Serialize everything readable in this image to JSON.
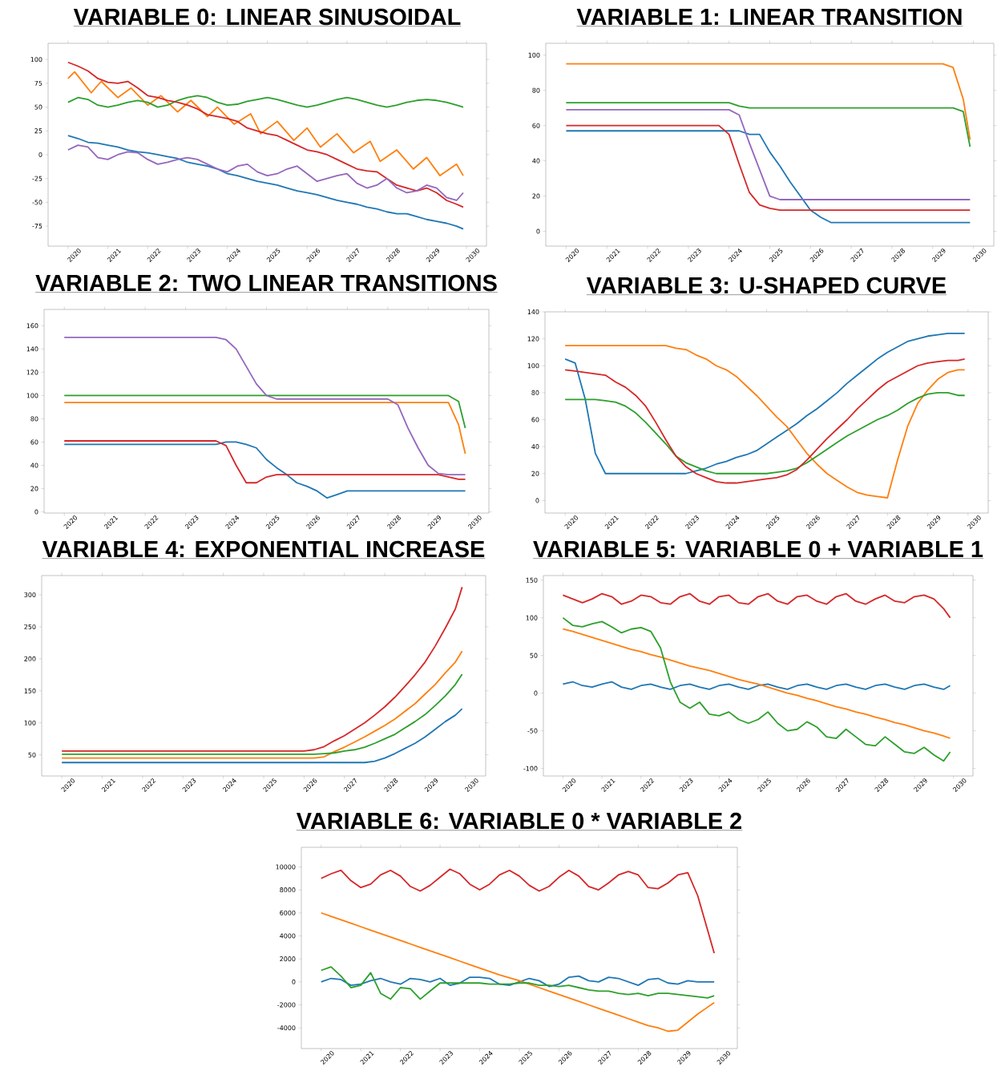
{
  "chart_data": [
    {
      "type": "line",
      "title": "VARIABLE 0: LINEAR SINUSOIDAL",
      "x": [
        "2020-01",
        "2020-04",
        "2020-07",
        "2020-10",
        "2021-01",
        "2021-04",
        "2021-07",
        "2021-10",
        "2022-01",
        "2022-04",
        "2022-07",
        "2022-10",
        "2023-01",
        "2023-04",
        "2023-07",
        "2023-10",
        "2024-01",
        "2024-04",
        "2024-07",
        "2024-10",
        "2025-01",
        "2025-04",
        "2025-07",
        "2025-10",
        "2026-01",
        "2026-04",
        "2026-07",
        "2026-10",
        "2027-01",
        "2027-04",
        "2027-07",
        "2027-10",
        "2028-01",
        "2028-04",
        "2028-07",
        "2028-10",
        "2029-01",
        "2029-04",
        "2029-07",
        "2029-10",
        "2029-12"
      ],
      "xlim": [
        "2019-07",
        "2030-07"
      ],
      "xticks": [
        "2020",
        "2021",
        "2022",
        "2023",
        "2024",
        "2025",
        "2026",
        "2027",
        "2028",
        "2029",
        "2030"
      ],
      "ylim": [
        -96,
        117
      ],
      "yticks": [
        -75,
        -50,
        -25,
        0,
        25,
        50,
        75,
        100
      ],
      "series": [
        {
          "color": "#1f77b4",
          "values": [
            20,
            17,
            13,
            12,
            10,
            8,
            5,
            3,
            2,
            0,
            -2,
            -4,
            -8,
            -10,
            -12,
            -15,
            -20,
            -22,
            -25,
            -28,
            -30,
            -32,
            -35,
            -38,
            -40,
            -42,
            -45,
            -48,
            -50,
            -52,
            -55,
            -57,
            -60,
            -62,
            -62,
            -65,
            -68,
            -70,
            -72,
            -75,
            -78
          ]
        },
        {
          "color": "#ff7f0e",
          "x": [
            "2020-01",
            "2020-03",
            "2020-08",
            "2020-11",
            "2021-04",
            "2021-08",
            "2022-01",
            "2022-05",
            "2022-10",
            "2023-02",
            "2023-07",
            "2023-10",
            "2024-03",
            "2024-08",
            "2024-11",
            "2025-04",
            "2025-09",
            "2026-01",
            "2026-05",
            "2026-10",
            "2027-03",
            "2027-08",
            "2027-11",
            "2028-04",
            "2028-09",
            "2029-01",
            "2029-05",
            "2029-10",
            "2029-12"
          ],
          "values": [
            80,
            87,
            65,
            77,
            60,
            70,
            52,
            62,
            45,
            57,
            40,
            50,
            32,
            43,
            22,
            35,
            15,
            28,
            8,
            22,
            2,
            14,
            -7,
            5,
            -15,
            -3,
            -22,
            -10,
            -22
          ]
        },
        {
          "color": "#2ca02c",
          "values": [
            55,
            60,
            58,
            52,
            50,
            52,
            55,
            57,
            55,
            50,
            52,
            57,
            60,
            62,
            60,
            55,
            52,
            53,
            56,
            58,
            60,
            58,
            55,
            52,
            50,
            52,
            55,
            58,
            60,
            58,
            55,
            52,
            50,
            52,
            55,
            57,
            58,
            57,
            55,
            52,
            50
          ]
        },
        {
          "color": "#d62728",
          "values": [
            97,
            93,
            88,
            80,
            76,
            75,
            77,
            70,
            62,
            60,
            57,
            55,
            52,
            48,
            42,
            40,
            38,
            35,
            28,
            25,
            22,
            20,
            15,
            10,
            5,
            3,
            0,
            -5,
            -10,
            -15,
            -17,
            -18,
            -25,
            -32,
            -35,
            -38,
            -35,
            -40,
            -48,
            -52,
            -55
          ]
        },
        {
          "color": "#9467bd",
          "values": [
            5,
            10,
            8,
            -3,
            -5,
            0,
            3,
            2,
            -5,
            -10,
            -8,
            -5,
            -3,
            -5,
            -10,
            -15,
            -18,
            -12,
            -10,
            -18,
            -22,
            -20,
            -15,
            -12,
            -20,
            -28,
            -25,
            -22,
            -20,
            -30,
            -35,
            -32,
            -25,
            -35,
            -40,
            -38,
            -32,
            -35,
            -45,
            -48,
            -40
          ]
        }
      ]
    },
    {
      "type": "line",
      "title": "VARIABLE 1: LINEAR TRANSITION",
      "x": [
        "2020-01",
        "2020-04",
        "2020-07",
        "2020-10",
        "2021-01",
        "2021-04",
        "2021-07",
        "2021-10",
        "2022-01",
        "2022-04",
        "2022-07",
        "2022-10",
        "2023-01",
        "2023-04",
        "2023-07",
        "2023-10",
        "2024-01",
        "2024-04",
        "2024-07",
        "2024-10",
        "2025-01",
        "2025-04",
        "2025-07",
        "2025-10",
        "2026-01",
        "2026-04",
        "2026-07",
        "2026-10",
        "2027-01",
        "2027-04",
        "2027-07",
        "2027-10",
        "2028-01",
        "2028-04",
        "2028-07",
        "2028-10",
        "2029-01",
        "2029-04",
        "2029-07",
        "2029-10",
        "2029-12"
      ],
      "xlim": [
        "2019-07",
        "2030-07"
      ],
      "xticks": [
        "2020",
        "2021",
        "2022",
        "2023",
        "2024",
        "2025",
        "2026",
        "2027",
        "2028",
        "2029",
        "2030"
      ],
      "ylim": [
        -8.4,
        106.7
      ],
      "yticks": [
        0,
        20,
        40,
        60,
        80,
        100
      ],
      "series": [
        {
          "color": "#1f77b4",
          "values": [
            57,
            57,
            57,
            57,
            57,
            57,
            57,
            57,
            57,
            57,
            57,
            57,
            57,
            57,
            57,
            57,
            57,
            57,
            55,
            55,
            45,
            37,
            28,
            20,
            12,
            8,
            5,
            5,
            5,
            5,
            5,
            5,
            5,
            5,
            5,
            5,
            5,
            5,
            5,
            5,
            5
          ]
        },
        {
          "color": "#ff7f0e",
          "values": [
            95,
            95,
            95,
            95,
            95,
            95,
            95,
            95,
            95,
            95,
            95,
            95,
            95,
            95,
            95,
            95,
            95,
            95,
            95,
            95,
            95,
            95,
            95,
            95,
            95,
            95,
            95,
            95,
            95,
            95,
            95,
            95,
            95,
            95,
            95,
            95,
            95,
            95,
            93,
            75,
            52
          ]
        },
        {
          "color": "#2ca02c",
          "values": [
            73,
            73,
            73,
            73,
            73,
            73,
            73,
            73,
            73,
            73,
            73,
            73,
            73,
            73,
            73,
            73,
            73,
            71,
            70,
            70,
            70,
            70,
            70,
            70,
            70,
            70,
            70,
            70,
            70,
            70,
            70,
            70,
            70,
            70,
            70,
            70,
            70,
            70,
            70,
            68,
            48
          ]
        },
        {
          "color": "#d62728",
          "values": [
            60,
            60,
            60,
            60,
            60,
            60,
            60,
            60,
            60,
            60,
            60,
            60,
            60,
            60,
            60,
            60,
            55,
            38,
            22,
            15,
            13,
            12,
            12,
            12,
            12,
            12,
            12,
            12,
            12,
            12,
            12,
            12,
            12,
            12,
            12,
            12,
            12,
            12,
            12,
            12,
            12
          ]
        },
        {
          "color": "#9467bd",
          "values": [
            69,
            69,
            69,
            69,
            69,
            69,
            69,
            69,
            69,
            69,
            69,
            69,
            69,
            69,
            69,
            69,
            69,
            66,
            50,
            35,
            20,
            18,
            18,
            18,
            18,
            18,
            18,
            18,
            18,
            18,
            18,
            18,
            18,
            18,
            18,
            18,
            18,
            18,
            18,
            18,
            18
          ]
        }
      ]
    },
    {
      "type": "line",
      "title": "VARIABLE 2: TWO LINEAR TRANSITIONS",
      "x": [
        "2020-01",
        "2020-04",
        "2020-07",
        "2020-10",
        "2021-01",
        "2021-04",
        "2021-07",
        "2021-10",
        "2022-01",
        "2022-04",
        "2022-07",
        "2022-10",
        "2023-01",
        "2023-04",
        "2023-07",
        "2023-10",
        "2024-01",
        "2024-04",
        "2024-07",
        "2024-10",
        "2025-01",
        "2025-04",
        "2025-07",
        "2025-10",
        "2026-01",
        "2026-04",
        "2026-07",
        "2026-10",
        "2027-01",
        "2027-04",
        "2027-07",
        "2027-10",
        "2028-01",
        "2028-04",
        "2028-07",
        "2028-10",
        "2029-01",
        "2029-04",
        "2029-07",
        "2029-10",
        "2029-12"
      ],
      "xlim": [
        "2019-07",
        "2030-07"
      ],
      "xticks": [
        "2020",
        "2021",
        "2022",
        "2023",
        "2024",
        "2025",
        "2026",
        "2027",
        "2028",
        "2029",
        "2030"
      ],
      "ylim": [
        -1,
        174
      ],
      "yticks": [
        0,
        20,
        40,
        60,
        80,
        100,
        120,
        140,
        160
      ],
      "series": [
        {
          "color": "#1f77b4",
          "values": [
            58,
            58,
            58,
            58,
            58,
            58,
            58,
            58,
            58,
            58,
            58,
            58,
            58,
            58,
            58,
            58,
            60,
            60,
            58,
            55,
            45,
            38,
            32,
            25,
            22,
            18,
            12,
            15,
            18,
            18,
            18,
            18,
            18,
            18,
            18,
            18,
            18,
            18,
            18,
            18,
            18
          ]
        },
        {
          "color": "#ff7f0e",
          "values": [
            94,
            94,
            94,
            94,
            94,
            94,
            94,
            94,
            94,
            94,
            94,
            94,
            94,
            94,
            94,
            94,
            94,
            94,
            94,
            94,
            94,
            94,
            94,
            94,
            94,
            94,
            94,
            94,
            94,
            94,
            94,
            94,
            94,
            94,
            94,
            94,
            94,
            94,
            94,
            75,
            50
          ]
        },
        {
          "color": "#2ca02c",
          "values": [
            100,
            100,
            100,
            100,
            100,
            100,
            100,
            100,
            100,
            100,
            100,
            100,
            100,
            100,
            100,
            100,
            100,
            100,
            100,
            100,
            100,
            100,
            100,
            100,
            100,
            100,
            100,
            100,
            100,
            100,
            100,
            100,
            100,
            100,
            100,
            100,
            100,
            100,
            100,
            95,
            72
          ]
        },
        {
          "color": "#d62728",
          "values": [
            61,
            61,
            61,
            61,
            61,
            61,
            61,
            61,
            61,
            61,
            61,
            61,
            61,
            61,
            61,
            61,
            57,
            40,
            25,
            25,
            30,
            32,
            32,
            32,
            32,
            32,
            32,
            32,
            32,
            32,
            32,
            32,
            32,
            32,
            32,
            32,
            32,
            32,
            30,
            28,
            28
          ]
        },
        {
          "color": "#9467bd",
          "values": [
            150,
            150,
            150,
            150,
            150,
            150,
            150,
            150,
            150,
            150,
            150,
            150,
            150,
            150,
            150,
            150,
            148,
            140,
            125,
            110,
            100,
            97,
            97,
            97,
            97,
            97,
            97,
            97,
            97,
            97,
            97,
            97,
            97,
            92,
            72,
            55,
            40,
            33,
            32,
            32,
            32
          ]
        }
      ]
    },
    {
      "type": "line",
      "title": "VARIABLE 3: U-SHAPED CURVE",
      "x": [
        "2020-01",
        "2020-04",
        "2020-07",
        "2020-10",
        "2021-01",
        "2021-04",
        "2021-07",
        "2021-10",
        "2022-01",
        "2022-04",
        "2022-07",
        "2022-10",
        "2023-01",
        "2023-04",
        "2023-07",
        "2023-10",
        "2024-01",
        "2024-04",
        "2024-07",
        "2024-10",
        "2025-01",
        "2025-04",
        "2025-07",
        "2025-10",
        "2026-01",
        "2026-04",
        "2026-07",
        "2026-10",
        "2027-01",
        "2027-04",
        "2027-07",
        "2027-10",
        "2028-01",
        "2028-04",
        "2028-07",
        "2028-10",
        "2029-01",
        "2029-04",
        "2029-07",
        "2029-10",
        "2029-12"
      ],
      "xlim": [
        "2019-07",
        "2030-07"
      ],
      "xticks": [
        "2020",
        "2021",
        "2022",
        "2023",
        "2024",
        "2025",
        "2026",
        "2027",
        "2028",
        "2029",
        "2030"
      ],
      "ylim": [
        -9.3,
        140
      ],
      "yticks": [
        0,
        20,
        40,
        60,
        80,
        100,
        120,
        140
      ],
      "series": [
        {
          "color": "#1f77b4",
          "values": [
            105,
            102,
            75,
            35,
            20,
            20,
            20,
            20,
            20,
            20,
            20,
            20,
            20,
            22,
            24,
            27,
            29,
            32,
            34,
            37,
            42,
            47,
            52,
            57,
            63,
            68,
            74,
            80,
            87,
            93,
            99,
            105,
            110,
            114,
            118,
            120,
            122,
            123,
            124,
            124,
            124
          ]
        },
        {
          "color": "#ff7f0e",
          "values": [
            115,
            115,
            115,
            115,
            115,
            115,
            115,
            115,
            115,
            115,
            115,
            113,
            112,
            108,
            105,
            100,
            97,
            92,
            85,
            78,
            70,
            62,
            55,
            45,
            35,
            27,
            20,
            15,
            10,
            6,
            4,
            3,
            2,
            30,
            55,
            72,
            82,
            90,
            95,
            97,
            97
          ]
        },
        {
          "color": "#2ca02c",
          "values": [
            75,
            75,
            75,
            75,
            74,
            73,
            70,
            65,
            58,
            50,
            42,
            33,
            28,
            25,
            22,
            20,
            20,
            20,
            20,
            20,
            20,
            21,
            22,
            24,
            28,
            33,
            38,
            43,
            48,
            52,
            56,
            60,
            63,
            67,
            72,
            76,
            79,
            80,
            80,
            78,
            78
          ]
        },
        {
          "color": "#d62728",
          "values": [
            97,
            96,
            95,
            94,
            93,
            88,
            84,
            78,
            70,
            58,
            45,
            33,
            25,
            20,
            17,
            14,
            13,
            13,
            14,
            15,
            16,
            17,
            19,
            23,
            30,
            38,
            46,
            53,
            60,
            68,
            75,
            82,
            88,
            92,
            96,
            100,
            102,
            103,
            104,
            104,
            105
          ]
        }
      ]
    },
    {
      "type": "line",
      "title": "VARIABLE 4: EXPONENTIAL INCREASE",
      "x": [
        "2020-01",
        "2020-04",
        "2020-07",
        "2020-10",
        "2021-01",
        "2021-04",
        "2021-07",
        "2021-10",
        "2022-01",
        "2022-04",
        "2022-07",
        "2022-10",
        "2023-01",
        "2023-04",
        "2023-07",
        "2023-10",
        "2024-01",
        "2024-04",
        "2024-07",
        "2024-10",
        "2025-01",
        "2025-04",
        "2025-07",
        "2025-10",
        "2026-01",
        "2026-04",
        "2026-07",
        "2026-10",
        "2027-01",
        "2027-04",
        "2027-07",
        "2027-10",
        "2028-01",
        "2028-04",
        "2028-07",
        "2028-10",
        "2029-01",
        "2029-04",
        "2029-07",
        "2029-10",
        "2029-12"
      ],
      "xlim": [
        "2019-07",
        "2030-07"
      ],
      "xticks": [
        "2020",
        "2021",
        "2022",
        "2023",
        "2024",
        "2025",
        "2026",
        "2027",
        "2028",
        "2029",
        "2030"
      ],
      "ylim": [
        17,
        330
      ],
      "yticks": [
        50,
        100,
        150,
        200,
        250,
        300
      ],
      "series": [
        {
          "color": "#1f77b4",
          "values": [
            38,
            38,
            38,
            38,
            38,
            38,
            38,
            38,
            38,
            38,
            38,
            38,
            38,
            38,
            38,
            38,
            38,
            38,
            38,
            38,
            38,
            38,
            38,
            38,
            38,
            38,
            38,
            38,
            38,
            38,
            38,
            40,
            45,
            52,
            60,
            68,
            78,
            90,
            102,
            112,
            122
          ]
        },
        {
          "color": "#ff7f0e",
          "values": [
            45,
            45,
            45,
            45,
            45,
            45,
            45,
            45,
            45,
            45,
            45,
            45,
            45,
            45,
            45,
            45,
            45,
            45,
            45,
            45,
            45,
            45,
            45,
            45,
            45,
            45,
            47,
            55,
            62,
            70,
            78,
            87,
            96,
            106,
            118,
            130,
            145,
            160,
            178,
            195,
            212
          ]
        },
        {
          "color": "#2ca02c",
          "values": [
            51,
            51,
            51,
            51,
            51,
            51,
            51,
            51,
            51,
            51,
            51,
            51,
            51,
            51,
            51,
            51,
            51,
            51,
            51,
            51,
            51,
            51,
            51,
            51,
            51,
            51,
            52,
            53,
            56,
            58,
            62,
            68,
            75,
            82,
            92,
            102,
            113,
            127,
            142,
            160,
            176
          ]
        },
        {
          "color": "#d62728",
          "values": [
            56,
            56,
            56,
            56,
            56,
            56,
            56,
            56,
            56,
            56,
            56,
            56,
            56,
            56,
            56,
            56,
            56,
            56,
            56,
            56,
            56,
            56,
            56,
            56,
            56,
            58,
            63,
            72,
            80,
            90,
            100,
            112,
            125,
            140,
            157,
            175,
            195,
            220,
            248,
            278,
            312
          ]
        }
      ]
    },
    {
      "type": "line",
      "title": "VARIABLE 5: VARIABLE 0 + VARIABLE 1",
      "x": [
        "2020-01",
        "2020-04",
        "2020-07",
        "2020-10",
        "2021-01",
        "2021-04",
        "2021-07",
        "2021-10",
        "2022-01",
        "2022-04",
        "2022-07",
        "2022-10",
        "2023-01",
        "2023-04",
        "2023-07",
        "2023-10",
        "2024-01",
        "2024-04",
        "2024-07",
        "2024-10",
        "2025-01",
        "2025-04",
        "2025-07",
        "2025-10",
        "2026-01",
        "2026-04",
        "2026-07",
        "2026-10",
        "2027-01",
        "2027-04",
        "2027-07",
        "2027-10",
        "2028-01",
        "2028-04",
        "2028-07",
        "2028-10",
        "2029-01",
        "2029-04",
        "2029-07",
        "2029-10",
        "2029-12"
      ],
      "xlim": [
        "2019-07",
        "2030-07"
      ],
      "xticks": [
        "2020",
        "2021",
        "2022",
        "2023",
        "2024",
        "2025",
        "2026",
        "2027",
        "2028",
        "2029",
        "2030"
      ],
      "ylim": [
        -110,
        156
      ],
      "yticks": [
        -100,
        -50,
        0,
        50,
        100,
        150
      ],
      "series": [
        {
          "color": "#1f77b4",
          "values": [
            12,
            15,
            10,
            8,
            12,
            15,
            8,
            5,
            10,
            12,
            8,
            5,
            10,
            12,
            8,
            5,
            10,
            12,
            8,
            5,
            10,
            12,
            8,
            5,
            10,
            12,
            8,
            5,
            10,
            12,
            8,
            5,
            10,
            12,
            8,
            5,
            10,
            12,
            8,
            5,
            10
          ]
        },
        {
          "color": "#ff7f0e",
          "values": [
            85,
            82,
            78,
            74,
            70,
            66,
            62,
            58,
            55,
            51,
            48,
            44,
            40,
            36,
            33,
            30,
            26,
            22,
            18,
            15,
            12,
            8,
            4,
            0,
            -3,
            -7,
            -10,
            -14,
            -18,
            -21,
            -25,
            -28,
            -32,
            -35,
            -39,
            -42,
            -46,
            -50,
            -53,
            -57,
            -60
          ]
        },
        {
          "color": "#2ca02c",
          "values": [
            100,
            90,
            88,
            92,
            95,
            88,
            80,
            85,
            87,
            82,
            60,
            15,
            -12,
            -20,
            -12,
            -28,
            -30,
            -25,
            -35,
            -40,
            -35,
            -25,
            -40,
            -50,
            -48,
            -38,
            -45,
            -58,
            -60,
            -48,
            -58,
            -68,
            -70,
            -58,
            -68,
            -78,
            -80,
            -72,
            -82,
            -90,
            -78
          ]
        },
        {
          "color": "#d62728",
          "values": [
            130,
            125,
            120,
            125,
            132,
            128,
            118,
            122,
            130,
            128,
            120,
            118,
            128,
            132,
            122,
            118,
            128,
            130,
            120,
            118,
            128,
            132,
            122,
            118,
            128,
            130,
            122,
            118,
            128,
            132,
            122,
            118,
            125,
            130,
            122,
            120,
            128,
            130,
            125,
            112,
            100
          ]
        }
      ]
    },
    {
      "type": "line",
      "title": "VARIABLE 6: VARIABLE 0 * VARIABLE 2",
      "x": [
        "2020-01",
        "2020-04",
        "2020-07",
        "2020-10",
        "2021-01",
        "2021-04",
        "2021-07",
        "2021-10",
        "2022-01",
        "2022-04",
        "2022-07",
        "2022-10",
        "2023-01",
        "2023-04",
        "2023-07",
        "2023-10",
        "2024-01",
        "2024-04",
        "2024-07",
        "2024-10",
        "2025-01",
        "2025-04",
        "2025-07",
        "2025-10",
        "2026-01",
        "2026-04",
        "2026-07",
        "2026-10",
        "2027-01",
        "2027-04",
        "2027-07",
        "2027-10",
        "2028-01",
        "2028-04",
        "2028-07",
        "2028-10",
        "2029-01",
        "2029-04",
        "2029-07",
        "2029-10",
        "2029-12"
      ],
      "xlim": [
        "2019-07",
        "2030-07"
      ],
      "xticks": [
        "2020",
        "2021",
        "2022",
        "2023",
        "2024",
        "2025",
        "2026",
        "2027",
        "2028",
        "2029",
        "2030"
      ],
      "ylim": [
        -5800,
        11700
      ],
      "yticks": [
        -4000,
        -2000,
        0,
        2000,
        4000,
        6000,
        8000,
        10000
      ],
      "series": [
        {
          "color": "#1f77b4",
          "values": [
            0,
            300,
            200,
            -300,
            -200,
            100,
            300,
            0,
            -200,
            300,
            200,
            0,
            300,
            -300,
            -100,
            400,
            400,
            300,
            -200,
            -300,
            0,
            300,
            100,
            -400,
            -200,
            400,
            500,
            100,
            0,
            400,
            300,
            0,
            -300,
            200,
            300,
            -100,
            -200,
            100,
            0,
            0,
            0
          ]
        },
        {
          "color": "#ff7f0e",
          "values": [
            6000,
            5700,
            5400,
            5100,
            4800,
            4500,
            4200,
            3900,
            3600,
            3300,
            3000,
            2700,
            2400,
            2100,
            1800,
            1500,
            1200,
            900,
            600,
            350,
            100,
            -200,
            -500,
            -800,
            -1100,
            -1400,
            -1700,
            -2000,
            -2300,
            -2600,
            -2900,
            -3200,
            -3500,
            -3800,
            -4000,
            -4300,
            -4200,
            -3500,
            -2800,
            -2200,
            -1800
          ]
        },
        {
          "color": "#2ca02c",
          "values": [
            1000,
            1300,
            500,
            -500,
            -300,
            800,
            -1000,
            -1500,
            -500,
            -600,
            -1500,
            -800,
            -100,
            -100,
            -100,
            -100,
            -100,
            -200,
            -200,
            -200,
            -100,
            -100,
            -300,
            -300,
            -400,
            -300,
            -500,
            -700,
            -800,
            -800,
            -1000,
            -1100,
            -1000,
            -1200,
            -1000,
            -1000,
            -1100,
            -1200,
            -1300,
            -1400,
            -1200
          ]
        },
        {
          "color": "#d62728",
          "values": [
            9000,
            9400,
            9700,
            8800,
            8200,
            8500,
            9300,
            9700,
            9200,
            8300,
            7900,
            8400,
            9100,
            9800,
            9400,
            8500,
            8000,
            8500,
            9300,
            9700,
            9200,
            8400,
            7900,
            8300,
            9100,
            9700,
            9200,
            8300,
            8000,
            8600,
            9300,
            9600,
            9300,
            8200,
            8100,
            8600,
            9300,
            9500,
            7500,
            4500,
            2500
          ]
        }
      ]
    }
  ]
}
